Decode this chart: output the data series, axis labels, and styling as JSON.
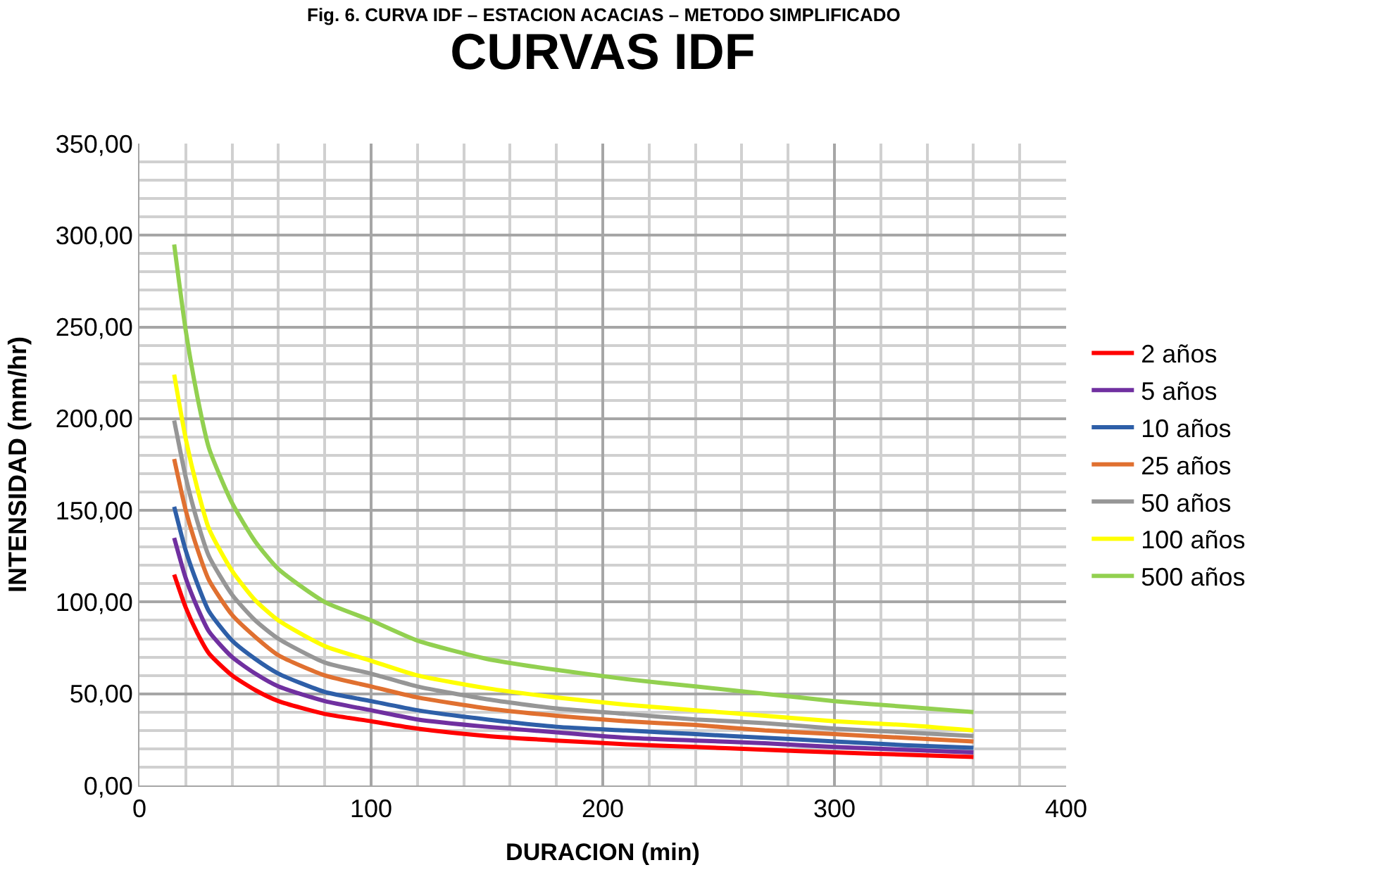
{
  "chart_data": {
    "type": "line",
    "title": "CURVAS IDF",
    "xlabel": "DURACION (min)",
    "ylabel": "INTENSIDAD (mm/hr)",
    "annotations": [
      "Fig. 6. CURVA IDF – ESTACION ACACIAS – METODO SIMPLIFICADO"
    ],
    "x": [
      15,
      20,
      25,
      30,
      40,
      50,
      60,
      80,
      100,
      120,
      150,
      180,
      210,
      240,
      270,
      300,
      330,
      360
    ],
    "series": [
      {
        "name": "2 años",
        "color": "#ff0000",
        "values": [
          115,
          97,
          83,
          72,
          60,
          52,
          46,
          39,
          35,
          31,
          27,
          24.5,
          22.5,
          21,
          19.5,
          18,
          16.8,
          15.5
        ]
      },
      {
        "name": "5 años",
        "color": "#7030a0",
        "values": [
          135,
          113,
          97,
          84,
          70,
          61,
          54,
          46,
          41,
          36,
          32,
          29,
          26,
          24.5,
          23,
          21,
          19.5,
          18
        ]
      },
      {
        "name": "10 años",
        "color": "#2e5fa8",
        "values": [
          152,
          128,
          110,
          95,
          79,
          69,
          61,
          51,
          46,
          41,
          36,
          32,
          30,
          28,
          26,
          24,
          22,
          20.5
        ]
      },
      {
        "name": "25 años",
        "color": "#e07030",
        "values": [
          178,
          150,
          129,
          112,
          93,
          81,
          71,
          60,
          54,
          48,
          42,
          38,
          35,
          33,
          30,
          28,
          26,
          24
        ]
      },
      {
        "name": "50 años",
        "color": "#969696",
        "values": [
          199,
          168,
          144,
          125,
          104,
          90,
          80,
          67,
          61,
          54,
          47,
          42,
          39,
          36,
          34,
          31,
          29,
          27
        ]
      },
      {
        "name": "100 años",
        "color": "#ffff00",
        "values": [
          224,
          189,
          162,
          140,
          117,
          101,
          90,
          76,
          68,
          60,
          53,
          48,
          44,
          41,
          38,
          35,
          33,
          30
        ]
      },
      {
        "name": "500 años",
        "color": "#92d050",
        "values": [
          295,
          248,
          212,
          184,
          154,
          133,
          118,
          100,
          90,
          79,
          69,
          63,
          58,
          54,
          50,
          46,
          43,
          40
        ]
      }
    ],
    "xlim": [
      0,
      400
    ],
    "xticks": [
      0,
      100,
      200,
      300,
      400
    ],
    "ylim": [
      0,
      350
    ],
    "yticks": [
      {
        "value": 0,
        "label": "0,00"
      },
      {
        "value": 50,
        "label": "50,00"
      },
      {
        "value": 100,
        "label": "100,00"
      },
      {
        "value": 150,
        "label": "150,00"
      },
      {
        "value": 200,
        "label": "200,00"
      },
      {
        "value": 250,
        "label": "250,00"
      },
      {
        "value": 300,
        "label": "300,00"
      },
      {
        "value": 350,
        "label": "350,00"
      }
    ],
    "grid": true,
    "legend": "right",
    "marker": "none",
    "line_style": "solid"
  }
}
